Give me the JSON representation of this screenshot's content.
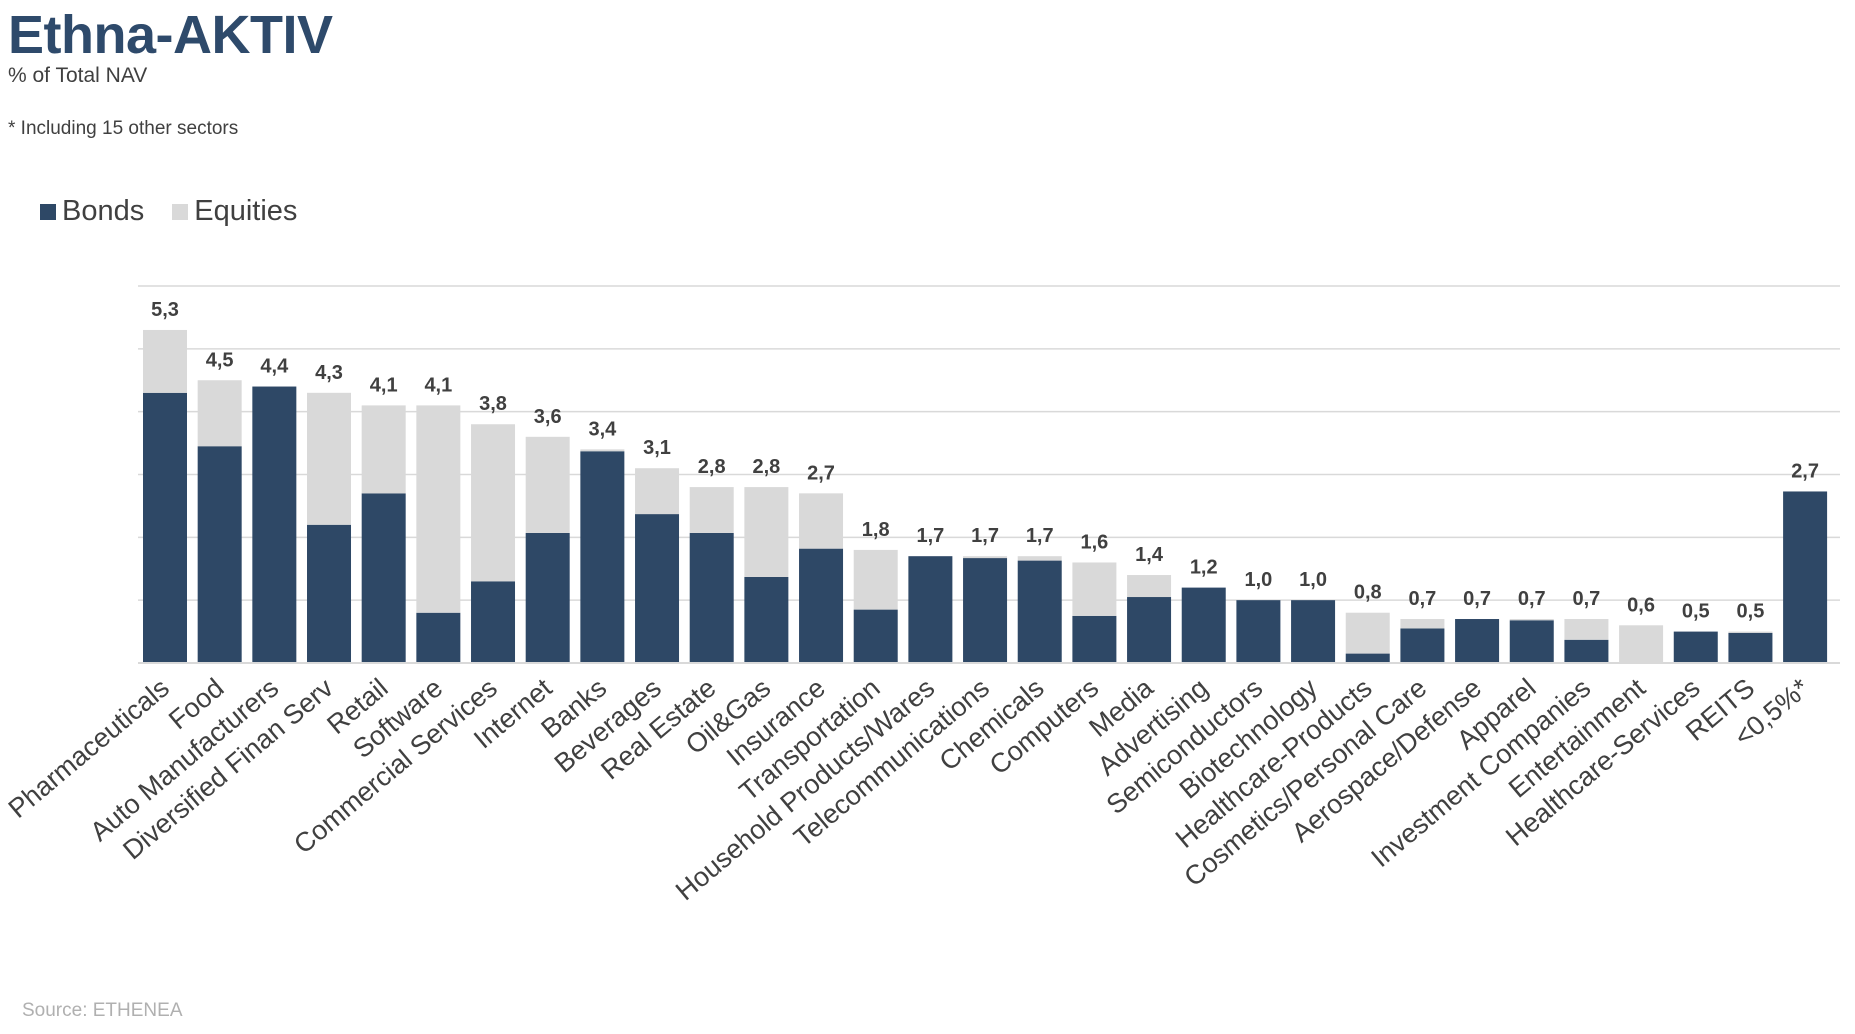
{
  "title": "Ethna-AKTIV",
  "subtitle": "% of Total NAV",
  "footnote": "* Including 15 other sectors",
  "source": "Source: ETHENEA",
  "colors": {
    "bonds": "#2e4866",
    "equities": "#d9d9d9",
    "grid": "#d9d9d9",
    "label": "#404040"
  },
  "chart_data": {
    "type": "bar",
    "stacked": true,
    "legend": "top-left",
    "grid": true,
    "ylim": [
      0,
      6
    ],
    "categories": [
      "Pharmaceuticals",
      "Food",
      "Auto Manufacturers",
      "Diversified Finan Serv",
      "Retail",
      "Software",
      "Commercial Services",
      "Internet",
      "Banks",
      "Beverages",
      "Real Estate",
      "Oil&Gas",
      "Insurance",
      "Transportation",
      "Household Products/Wares",
      "Telecommunications",
      "Chemicals",
      "Computers",
      "Media",
      "Advertising",
      "Semiconductors",
      "Biotechnology",
      "Healthcare-Products",
      "Cosmetics/Personal Care",
      "Aerospace/Defense",
      "Apparel",
      "Investment Companies",
      "Entertainment",
      "Healthcare-Services",
      "REITS",
      "<0,5%*"
    ],
    "series": [
      {
        "name": "Bonds",
        "values": [
          4.3,
          3.45,
          4.4,
          2.2,
          2.7,
          0.8,
          1.3,
          2.07,
          3.37,
          2.37,
          2.07,
          1.37,
          1.82,
          0.85,
          1.7,
          1.67,
          1.63,
          0.75,
          1.05,
          1.2,
          1.0,
          1.0,
          0.15,
          0.55,
          0.7,
          0.68,
          0.37,
          0.0,
          0.5,
          0.48,
          2.73
        ]
      },
      {
        "name": "Equities",
        "values": [
          1.0,
          1.05,
          0.0,
          2.1,
          1.4,
          3.3,
          2.5,
          1.53,
          0.03,
          0.73,
          0.73,
          1.43,
          0.88,
          0.95,
          0.0,
          0.03,
          0.07,
          0.85,
          0.35,
          0.0,
          0.0,
          0.0,
          0.65,
          0.15,
          0.0,
          0.02,
          0.33,
          0.6,
          0.0,
          0.02,
          0.0
        ]
      }
    ],
    "total_labels": [
      "5,3",
      "4,5",
      "4,4",
      "4,3",
      "4,1",
      "4,1",
      "3,8",
      "3,6",
      "3,4",
      "3,1",
      "2,8",
      "2,8",
      "2,7",
      "1,8",
      "1,7",
      "1,7",
      "1,7",
      "1,6",
      "1,4",
      "1,2",
      "1,0",
      "1,0",
      "0,8",
      "0,7",
      "0,7",
      "0,7",
      "0,7",
      "0,6",
      "0,5",
      "0,5",
      "2,7"
    ]
  }
}
